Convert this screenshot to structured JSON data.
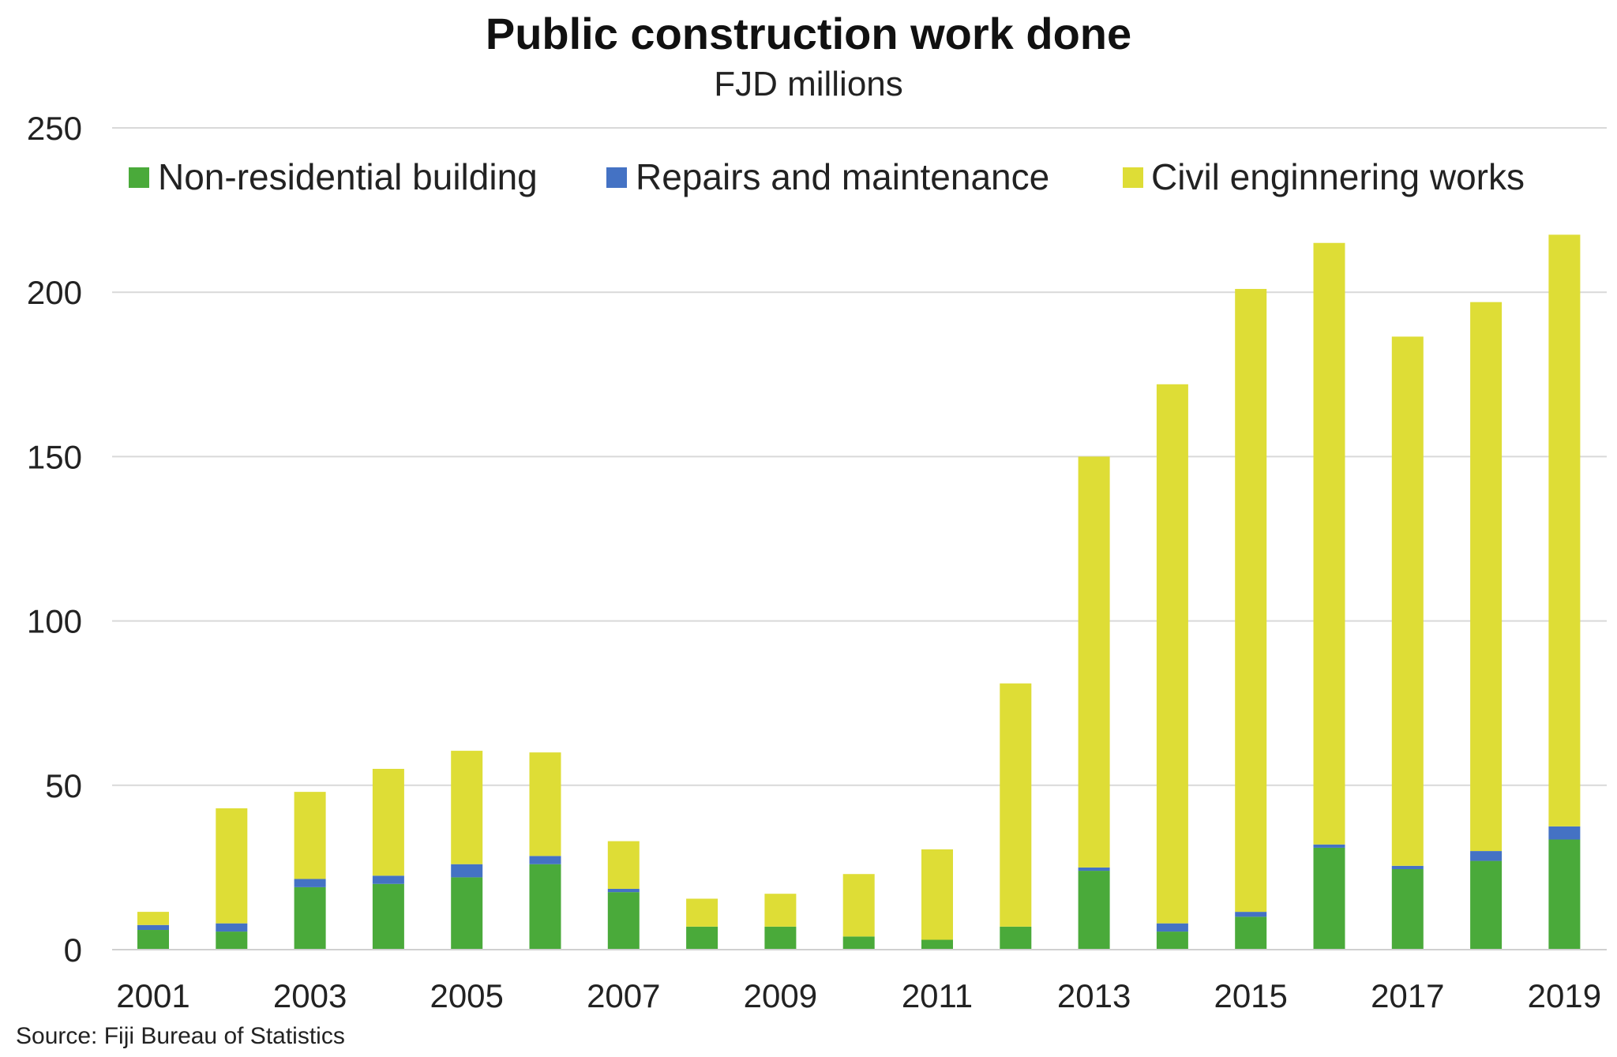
{
  "chart_data": {
    "type": "bar",
    "stacked": true,
    "title": "Public construction work done",
    "subtitle": "FJD millions",
    "source": "Source: Fiji Bureau of Statistics",
    "categories": [
      "2001",
      "2002",
      "2003",
      "2004",
      "2005",
      "2006",
      "2007",
      "2008",
      "2009",
      "2010",
      "2011",
      "2012",
      "2013",
      "2014",
      "2015",
      "2016",
      "2017",
      "2018",
      "2019"
    ],
    "x_tick_labels": [
      "2001",
      "2003",
      "2005",
      "2007",
      "2009",
      "2011",
      "2013",
      "2015",
      "2017",
      "2019"
    ],
    "ylim": [
      0,
      250
    ],
    "y_ticks": [
      0,
      50,
      100,
      150,
      200,
      250
    ],
    "grid": true,
    "legend_position": "top",
    "series": [
      {
        "name": "Non-residential building",
        "color": "#4aaa3a",
        "values": [
          6,
          5.5,
          19,
          20,
          22,
          26,
          17.5,
          7,
          7,
          4,
          3,
          7,
          24,
          5.5,
          10,
          31,
          24.5,
          27,
          33.5
        ]
      },
      {
        "name": "Repairs and maintenance",
        "color": "#4472c4",
        "values": [
          1.5,
          2.5,
          2.5,
          2.5,
          4,
          2.5,
          1,
          0,
          0,
          0,
          0,
          0,
          1,
          2.5,
          1.5,
          1,
          1,
          3,
          4
        ]
      },
      {
        "name": "Civil enginnering works",
        "color": "#dedd36",
        "values": [
          4,
          35,
          26.5,
          32.5,
          34.5,
          31.5,
          14.5,
          8.5,
          10,
          19,
          27.5,
          74,
          125,
          164,
          189.5,
          183,
          161,
          167,
          180
        ]
      }
    ]
  }
}
